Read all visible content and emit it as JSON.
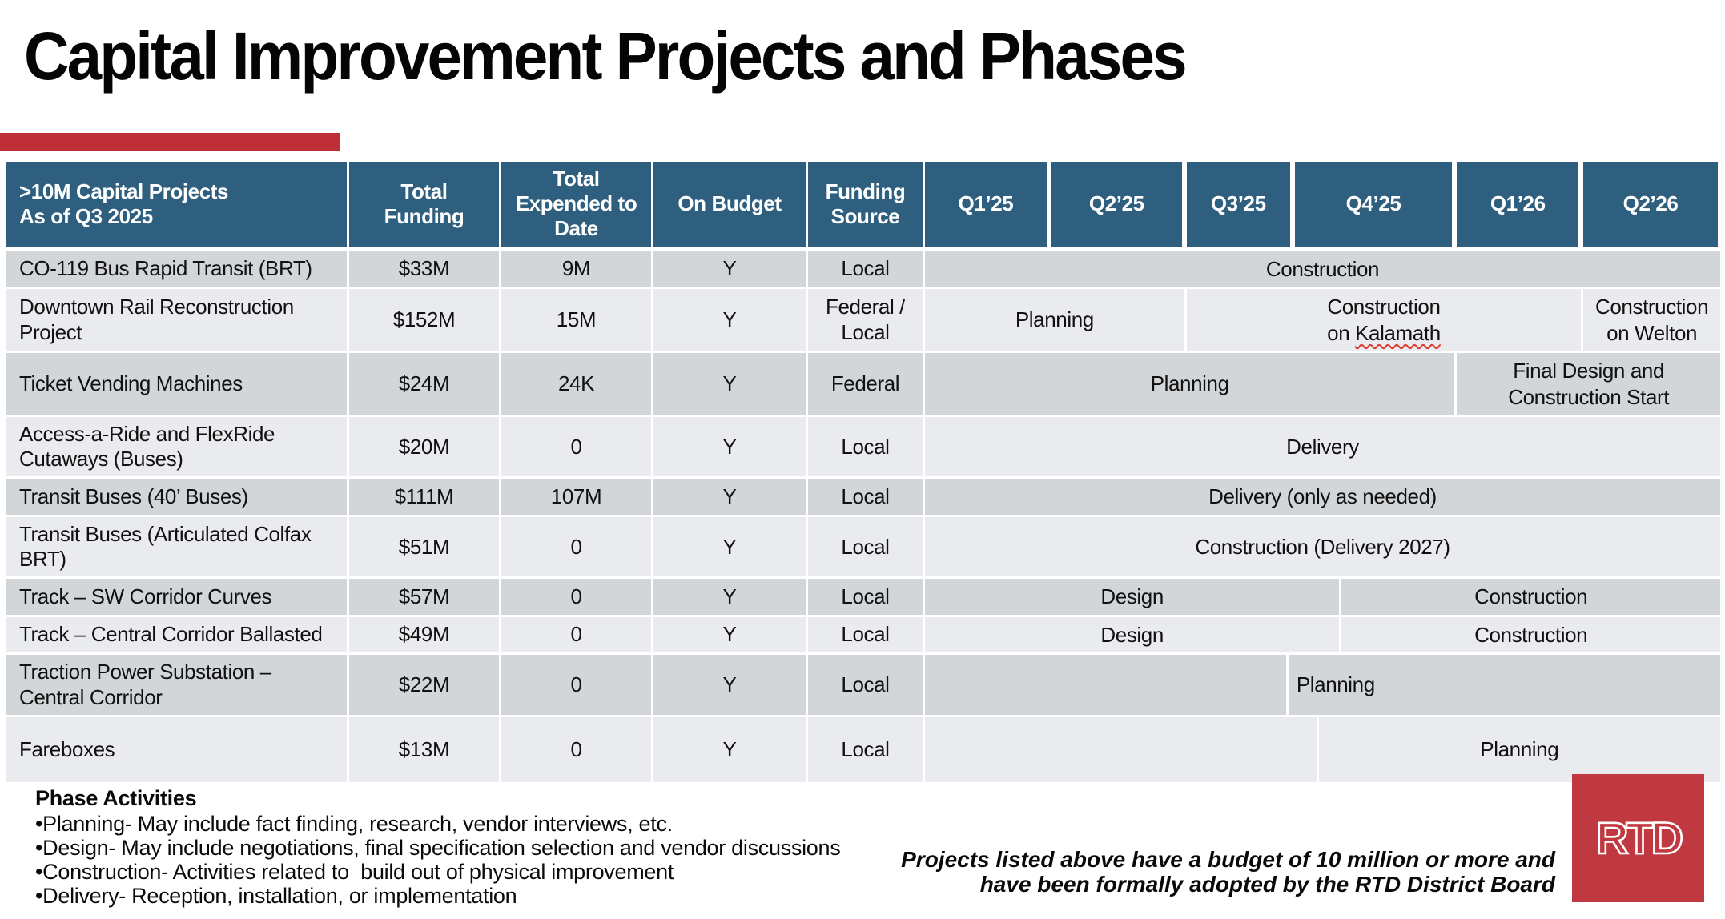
{
  "slide": {
    "title": "Capital Improvement Projects and Phases",
    "colors": {
      "accent_red": "#BE2F38",
      "header_blue": "#2F5F7F",
      "row_dark": "#D3D6D9",
      "row_light": "#E9EBEE",
      "logo_red": "#C13940",
      "squiggle_red": "#E0372E"
    }
  },
  "table": {
    "header": {
      "project_col": ">10M Capital Projects\nAs of Q3 2025",
      "cols": [
        "Total\nFunding",
        "Total\nExpended to\nDate",
        "On Budget",
        "Funding\nSource"
      ],
      "quarters": [
        {
          "label": "Q1’25",
          "width_pct": 15.6
        },
        {
          "label": "Q2’25",
          "width_pct": 17.0
        },
        {
          "label": "Q3’25",
          "width_pct": 13.6
        },
        {
          "label": "Q4’25",
          "width_pct": 20.4
        },
        {
          "label": "Q1’26",
          "width_pct": 15.9
        },
        {
          "label": "Q2’26",
          "width_pct": 17.5
        }
      ]
    },
    "rows": [
      {
        "project": "CO-119 Bus Rapid Transit (BRT)",
        "total_funding": "$33M",
        "expended": "9M",
        "on_budget": "Y",
        "funding_source": "Local",
        "segments": [
          {
            "label": "Construction",
            "start": 0,
            "end": 100
          }
        ]
      },
      {
        "project": "Downtown Rail Reconstruction\nProject",
        "total_funding": "$152M",
        "expended": "15M",
        "on_budget": "Y",
        "funding_source": "Federal /\nLocal",
        "segments": [
          {
            "label": "Planning",
            "start": 0,
            "end": 32.6
          },
          {
            "label": "Construction\non Kalamath",
            "start": 32.6,
            "end": 82.5,
            "squiggle": "Kalamath"
          },
          {
            "label": "Construction\non Welton",
            "start": 82.5,
            "end": 100
          }
        ]
      },
      {
        "project": "Ticket Vending Machines",
        "total_funding": "$24M",
        "expended": "24K",
        "on_budget": "Y",
        "funding_source": "Federal",
        "segments": [
          {
            "label": "Planning",
            "start": 0,
            "end": 66.6
          },
          {
            "label": "Final Design and\nConstruction Start",
            "start": 66.6,
            "end": 100
          }
        ]
      },
      {
        "project": "Access-a-Ride and FlexRide\nCutaways (Buses)",
        "total_funding": "$20M",
        "expended": "0",
        "on_budget": "Y",
        "funding_source": "Local",
        "segments": [
          {
            "label": "Delivery",
            "start": 0,
            "end": 100
          }
        ]
      },
      {
        "project": "Transit Buses (40’ Buses)",
        "total_funding": "$111M",
        "expended": "107M",
        "on_budget": "Y",
        "funding_source": "Local",
        "segments": [
          {
            "label": "Delivery (only as needed)",
            "start": 0,
            "end": 100
          }
        ]
      },
      {
        "project": "Transit Buses (Articulated Colfax\nBRT)",
        "total_funding": "$51M",
        "expended": "0",
        "on_budget": "Y",
        "funding_source": "Local",
        "segments": [
          {
            "label": "Construction (Delivery 2027)",
            "start": 0,
            "end": 100
          }
        ]
      },
      {
        "project": "Track – SW Corridor Curves",
        "total_funding": "$57M",
        "expended": "0",
        "on_budget": "Y",
        "funding_source": "Local",
        "segments": [
          {
            "label": "Design",
            "start": 0,
            "end": 52.1
          },
          {
            "label": "Construction",
            "start": 52.1,
            "end": 100
          }
        ]
      },
      {
        "project": "Track – Central Corridor Ballasted",
        "total_funding": "$49M",
        "expended": "0",
        "on_budget": "Y",
        "funding_source": "Local",
        "segments": [
          {
            "label": "Design",
            "start": 0,
            "end": 52.1
          },
          {
            "label": "Construction",
            "start": 52.1,
            "end": 100
          }
        ]
      },
      {
        "project": "Traction Power Substation –\nCentral Corridor",
        "total_funding": "$22M",
        "expended": "0",
        "on_budget": "Y",
        "funding_source": "Local",
        "segments": [
          {
            "label": "",
            "start": 0,
            "end": 45.4
          },
          {
            "label": "Planning",
            "start": 45.4,
            "end": 100,
            "align": "left"
          }
        ]
      },
      {
        "project": "Fareboxes",
        "total_funding": "$13M",
        "expended": "0",
        "on_budget": "Y",
        "funding_source": "Local",
        "segments": [
          {
            "label": "",
            "start": 0,
            "end": 49.2
          },
          {
            "label": "Planning",
            "start": 49.2,
            "end": 100
          }
        ]
      }
    ]
  },
  "footer": {
    "phase_title": "Phase Activities",
    "phase_items": [
      "•Planning- May include fact finding, research, vendor interviews, etc.",
      "•Design- May include negotiations, final specification selection and vendor discussions",
      "•Construction- Activities related to  build out of physical improvement",
      "•Delivery- Reception, installation, or implementation"
    ],
    "budget_note": "Projects listed above have a budget of 10 million or more and\nhave been formally adopted by the RTD District Board",
    "logo_text": "RTD"
  }
}
